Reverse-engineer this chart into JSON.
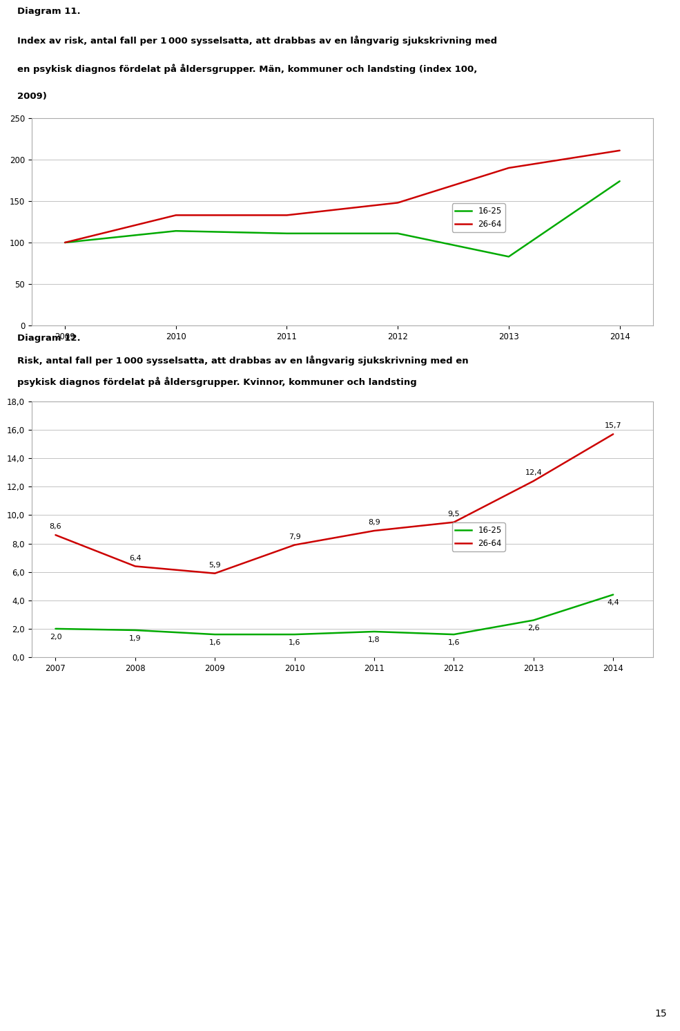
{
  "page_number": "15",
  "background_color": "#ffffff",
  "text_color": "#000000",
  "grid_color": "#aaaaaa",
  "frame_color": "#aaaaaa",
  "font_size_title": 9.5,
  "font_size_tick": 8.5,
  "font_size_data": 8.0,
  "line_width": 1.8,
  "diagram11": {
    "label": "Diagram 11.",
    "title_line1": "Index av risk, antal fall per 1 000 sysselsatta, att drabbas av en långvarig sjukskrivning med",
    "title_line2": "en psykisk diagnos fördelat på åldersgrupper. Män, kommuner och landsting (index 100,",
    "title_line3": "2009)",
    "years": [
      2009,
      2010,
      2011,
      2012,
      2013,
      2014
    ],
    "series": [
      {
        "name": "16-25",
        "color": "#00aa00",
        "values": [
          100,
          114,
          111,
          111,
          83,
          174
        ]
      },
      {
        "name": "26-64",
        "color": "#cc0000",
        "values": [
          100,
          133,
          133,
          148,
          190,
          211
        ]
      }
    ],
    "ylim": [
      0,
      250
    ],
    "yticks": [
      0,
      50,
      100,
      150,
      200,
      250
    ]
  },
  "diagram12": {
    "label": "Diagram 12.",
    "title_line1": "Risk, antal fall per 1 000 sysselsatta, att drabbas av en långvarig sjukskrivning med en",
    "title_line2": "psykisk diagnos fördelat på åldersgrupper. Kvinnor, kommuner och landsting",
    "years": [
      2007,
      2008,
      2009,
      2010,
      2011,
      2012,
      2013,
      2014
    ],
    "series": [
      {
        "name": "16-25",
        "color": "#00aa00",
        "values": [
          2.0,
          1.9,
          1.6,
          1.6,
          1.8,
          1.6,
          2.6,
          4.4
        ],
        "labels": [
          "2,0",
          "1,9",
          "1,6",
          "1,6",
          "1,8",
          "1,6",
          "2,6",
          "4,4"
        ],
        "label_offsets": [
          8,
          8,
          8,
          8,
          8,
          8,
          8,
          8
        ],
        "label_va": [
          "bottom",
          "bottom",
          "bottom",
          "bottom",
          "bottom",
          "bottom",
          "bottom",
          "bottom"
        ]
      },
      {
        "name": "26-64",
        "color": "#cc0000",
        "values": [
          8.6,
          6.4,
          5.9,
          7.9,
          8.9,
          9.5,
          12.4,
          15.7
        ],
        "labels": [
          "8,6",
          "6,4",
          "5,9",
          "7,9",
          "8,9",
          "9,5",
          "12,4",
          "15,7"
        ],
        "label_offsets": [
          8,
          8,
          8,
          8,
          8,
          8,
          8,
          8
        ],
        "label_va": [
          "bottom",
          "bottom",
          "bottom",
          "bottom",
          "bottom",
          "bottom",
          "bottom",
          "bottom"
        ]
      }
    ],
    "ylim": [
      0.0,
      18.0
    ],
    "yticks": [
      0.0,
      2.0,
      4.0,
      6.0,
      8.0,
      10.0,
      12.0,
      14.0,
      16.0,
      18.0
    ],
    "ytick_labels": [
      "0,0",
      "2,0",
      "4,0",
      "6,0",
      "8,0",
      "10,0",
      "12,0",
      "14,0",
      "16,0",
      "18,0"
    ]
  }
}
